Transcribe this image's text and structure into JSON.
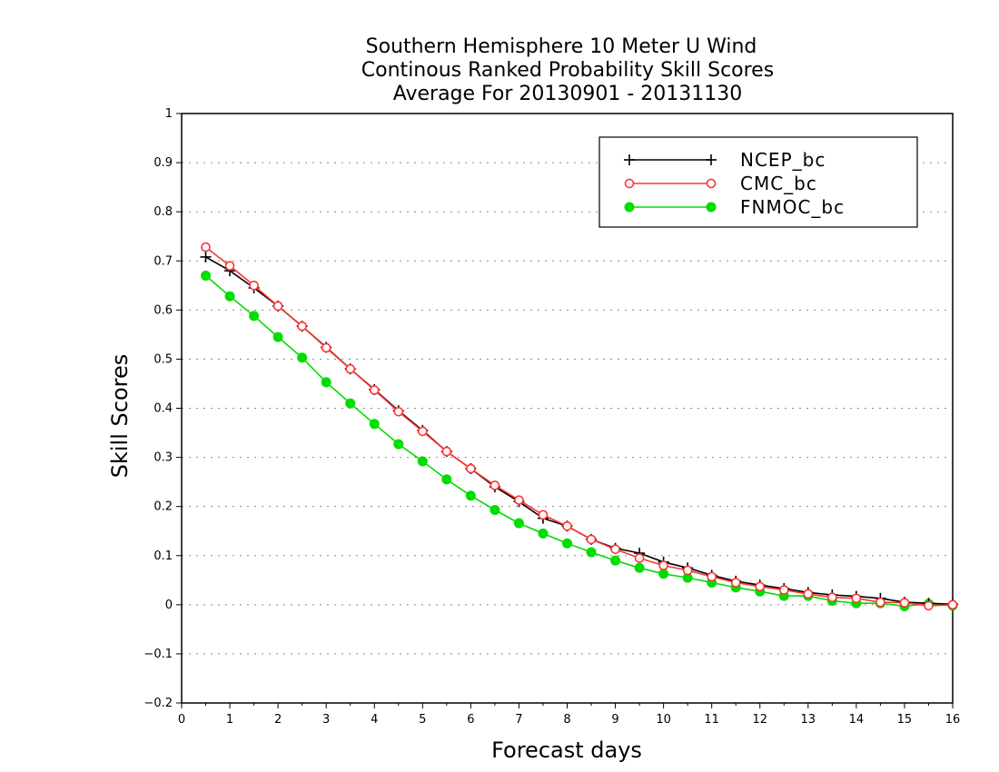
{
  "chart_data": {
    "type": "line",
    "title": [
      "Southern Hemisphere 10 Meter U Wind",
      "Continous Ranked Probability Skill Scores",
      "Average For 20130901 - 20131130"
    ],
    "xlabel": "Forecast days",
    "ylabel": "Skill Scores",
    "xlim": [
      0,
      16
    ],
    "ylim": [
      -0.2,
      1
    ],
    "xticks": [
      "0",
      "1",
      "2",
      "3",
      "4",
      "5",
      "6",
      "7",
      "8",
      "9",
      "10",
      "11",
      "12",
      "13",
      "14",
      "15",
      "16"
    ],
    "yticks": [
      "−0.2",
      "−0.1",
      "0",
      "0.1",
      "0.2",
      "0.3",
      "0.4",
      "0.5",
      "0.6",
      "0.7",
      "0.8",
      "0.9",
      "1"
    ],
    "grid": "horizontal dotted",
    "legend_position": "top-right",
    "x": [
      0.5,
      1,
      1.5,
      2,
      2.5,
      3,
      3.5,
      4,
      4.5,
      5,
      5.5,
      6,
      6.5,
      7,
      7.5,
      8,
      8.5,
      9,
      9.5,
      10,
      10.5,
      11,
      11.5,
      12,
      12.5,
      13,
      13.5,
      14,
      14.5,
      15,
      15.5,
      16
    ],
    "series": [
      {
        "name": "NCEP_bc",
        "color": "#000000",
        "marker": "plus",
        "values": [
          0.708,
          0.68,
          0.645,
          0.608,
          0.567,
          0.524,
          0.48,
          0.438,
          0.395,
          0.355,
          0.312,
          0.277,
          0.24,
          0.21,
          0.176,
          0.16,
          0.133,
          0.115,
          0.105,
          0.087,
          0.075,
          0.06,
          0.048,
          0.04,
          0.033,
          0.025,
          0.02,
          0.017,
          0.013,
          0.005,
          0.003,
          0.001
        ]
      },
      {
        "name": "CMC_bc",
        "color": "#ff3333",
        "marker": "open-circle",
        "values": [
          0.728,
          0.69,
          0.65,
          0.608,
          0.567,
          0.523,
          0.48,
          0.437,
          0.393,
          0.353,
          0.312,
          0.277,
          0.243,
          0.213,
          0.183,
          0.16,
          0.133,
          0.113,
          0.095,
          0.08,
          0.07,
          0.057,
          0.045,
          0.037,
          0.03,
          0.022,
          0.015,
          0.013,
          0.005,
          0.004,
          -0.002,
          0.0
        ]
      },
      {
        "name": "FNMOC_bc",
        "color": "#00dd00",
        "marker": "filled-circle",
        "values": [
          0.67,
          0.628,
          0.588,
          0.545,
          0.503,
          0.453,
          0.41,
          0.368,
          0.327,
          0.292,
          0.255,
          0.222,
          0.193,
          0.166,
          0.145,
          0.125,
          0.107,
          0.09,
          0.075,
          0.063,
          0.055,
          0.045,
          0.035,
          0.027,
          0.018,
          0.018,
          0.008,
          0.003,
          0.003,
          -0.003,
          0.002,
          -0.002
        ]
      }
    ]
  }
}
